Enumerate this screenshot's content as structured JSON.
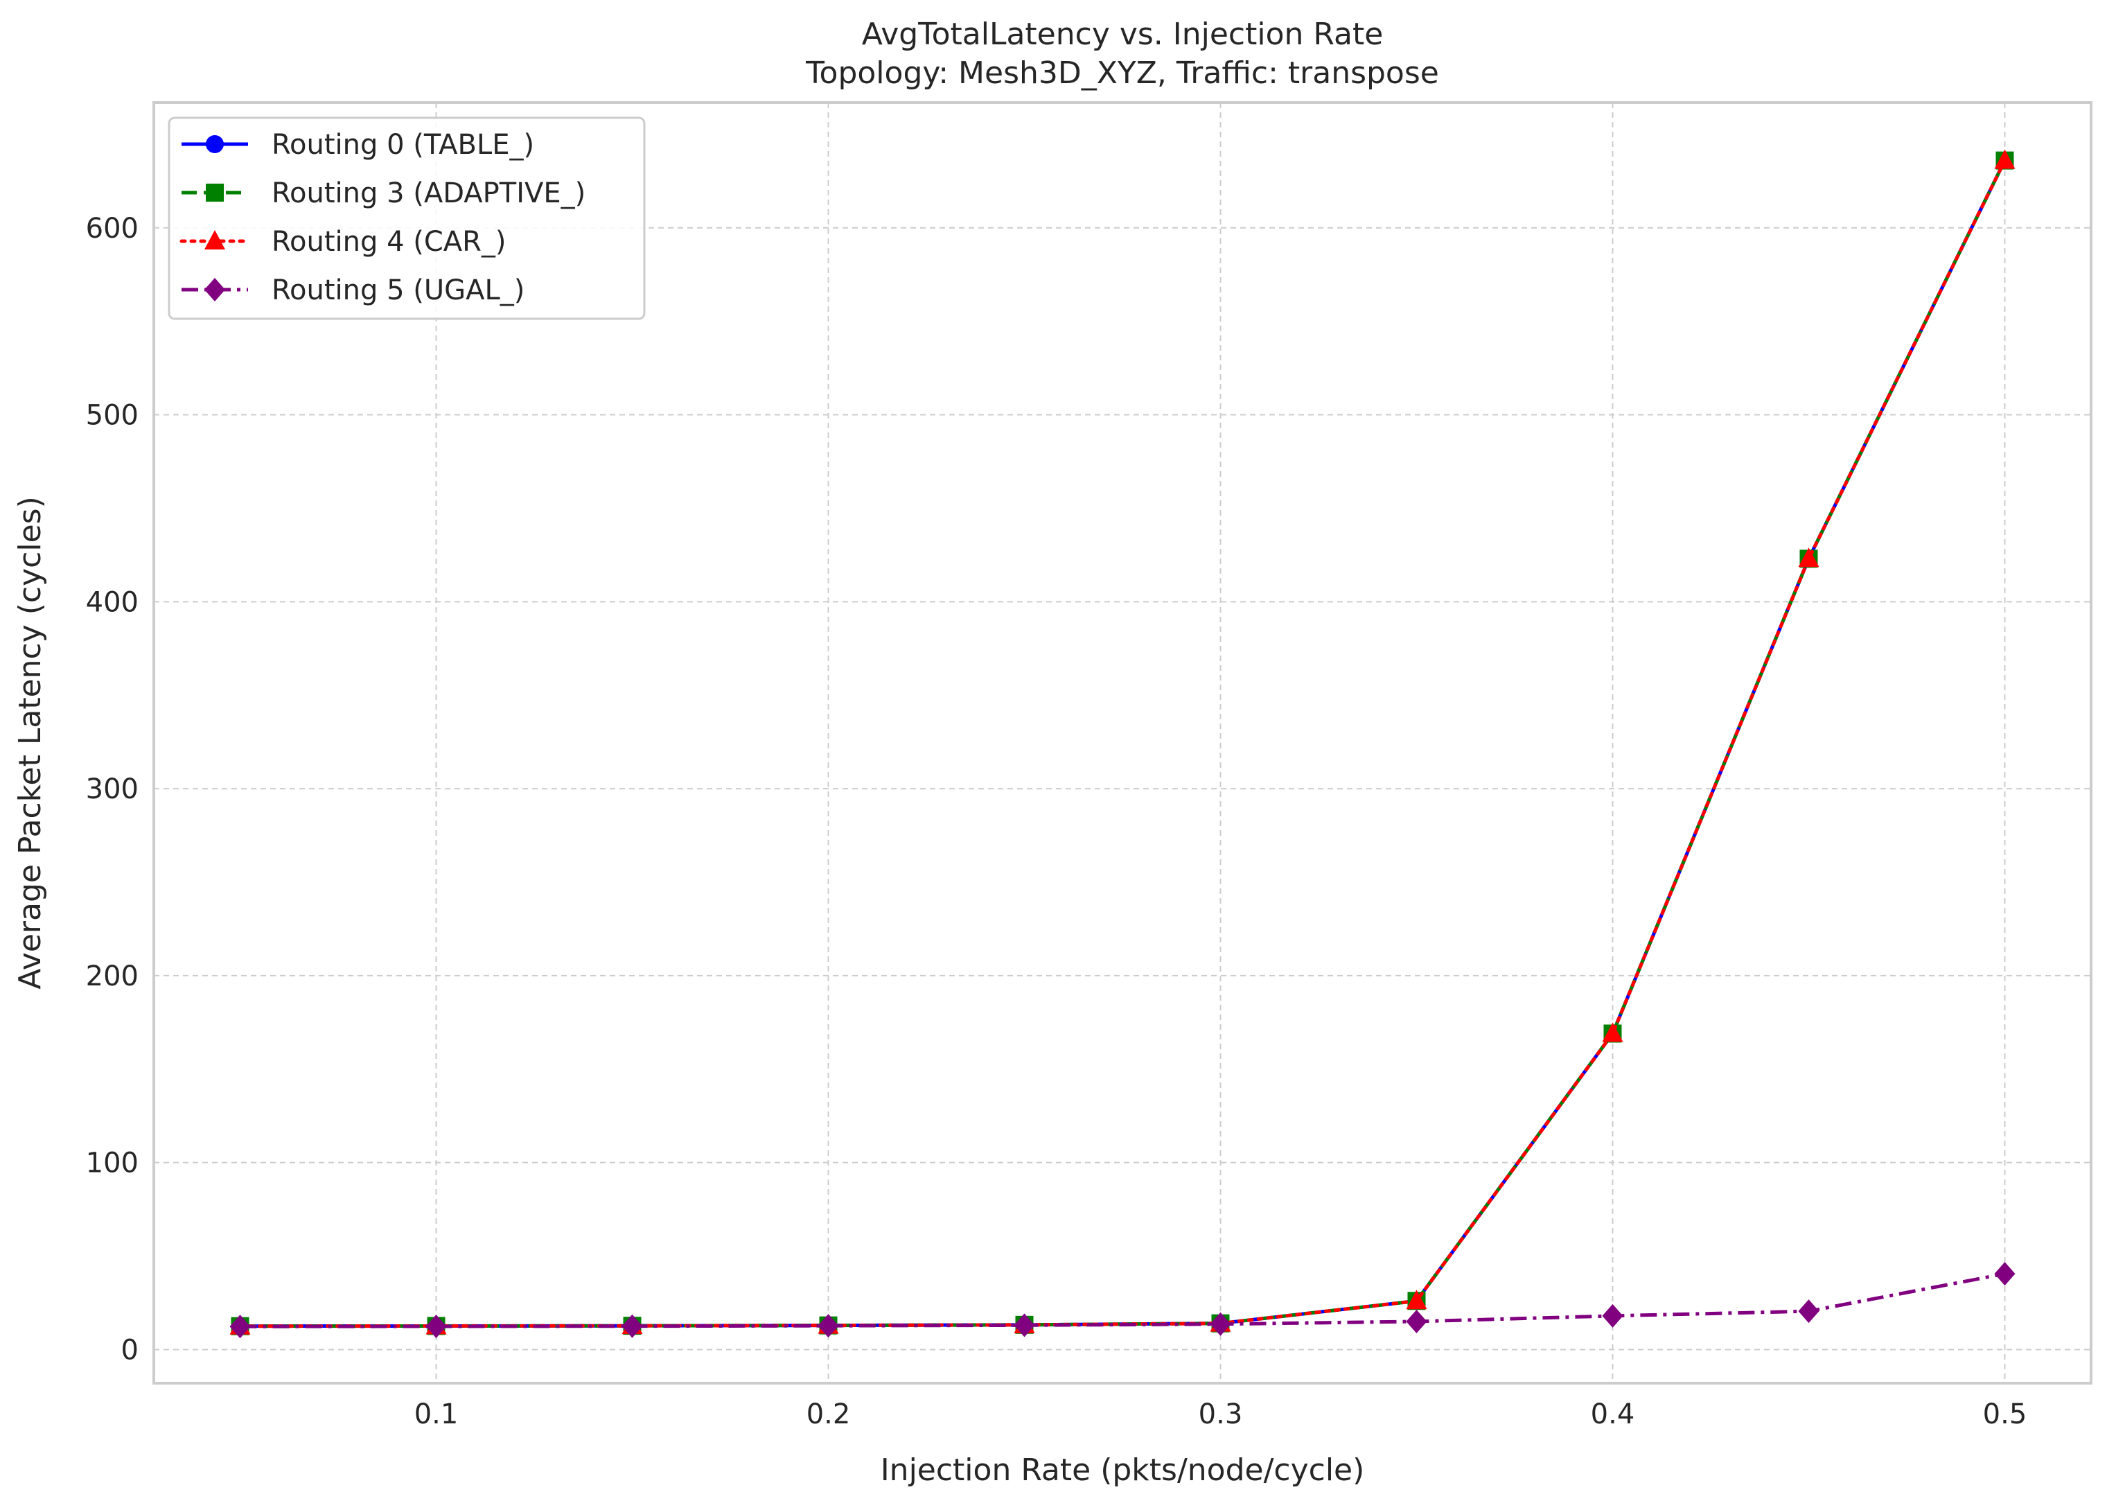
{
  "chart_data": {
    "type": "line",
    "title": "AvgTotalLatency vs. Injection Rate",
    "subtitle": "Topology: Mesh3D_XYZ, Traffic: transpose",
    "xlabel": "Injection Rate (pkts/node/cycle)",
    "ylabel": "Average Packet Latency (cycles)",
    "xlim": [
      0.028,
      0.522
    ],
    "ylim": [
      -18,
      667
    ],
    "xticks": [
      0.1,
      0.2,
      0.3,
      0.4,
      0.5
    ],
    "xtick_labels": [
      "0.1",
      "0.2",
      "0.3",
      "0.4",
      "0.5"
    ],
    "yticks": [
      0,
      100,
      200,
      300,
      400,
      500,
      600
    ],
    "ytick_labels": [
      "0",
      "100",
      "200",
      "300",
      "400",
      "500",
      "600"
    ],
    "grid": true,
    "legend_position": "top-left",
    "x": [
      0.05,
      0.1,
      0.15,
      0.2,
      0.25,
      0.3,
      0.35,
      0.4,
      0.45,
      0.5
    ],
    "series": [
      {
        "name": "Routing 0 (TABLE_)",
        "color": "#0000ff",
        "line_style": "solid",
        "marker": "circle",
        "values": [
          12.5,
          12.6,
          12.7,
          12.9,
          13.2,
          14.0,
          26.0,
          169.0,
          423.0,
          636.0
        ]
      },
      {
        "name": "Routing 3 (ADAPTIVE_)",
        "color": "#008000",
        "line_style": "dashed",
        "marker": "square",
        "values": [
          12.5,
          12.6,
          12.7,
          12.9,
          13.2,
          14.0,
          26.0,
          169.0,
          423.0,
          636.0
        ]
      },
      {
        "name": "Routing 4 (CAR_)",
        "color": "#ff0000",
        "line_style": "dotted",
        "marker": "triangle",
        "values": [
          12.5,
          12.6,
          12.7,
          12.9,
          13.2,
          14.0,
          26.0,
          169.0,
          423.0,
          636.0
        ]
      },
      {
        "name": "Routing 5 (UGAL_)",
        "color": "#800080",
        "line_style": "dashdot",
        "marker": "diamond",
        "values": [
          12.3,
          12.4,
          12.5,
          12.7,
          13.0,
          13.6,
          15.0,
          18.0,
          20.5,
          40.5
        ]
      }
    ]
  }
}
